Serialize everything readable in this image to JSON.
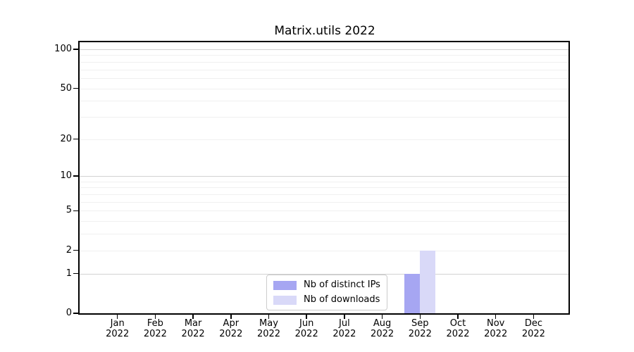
{
  "chart_data": {
    "type": "bar",
    "title": "Matrix.utils 2022",
    "categories": [
      "Jan",
      "Feb",
      "Mar",
      "Apr",
      "May",
      "Jun",
      "Jul",
      "Aug",
      "Sep",
      "Oct",
      "Nov",
      "Dec"
    ],
    "year": "2022",
    "series": [
      {
        "name": "Nb of distinct IPs",
        "color": "#a6a6f2",
        "values": [
          0,
          0,
          0,
          0,
          0,
          0,
          0,
          0,
          1,
          0,
          0,
          0
        ]
      },
      {
        "name": "Nb of downloads",
        "color": "#d9d9f8",
        "values": [
          0,
          0,
          0,
          0,
          0,
          0,
          0,
          0,
          2,
          0,
          0,
          0
        ]
      }
    ],
    "y_ticks": [
      0,
      1,
      2,
      5,
      10,
      20,
      50,
      100
    ],
    "y_scale": "log(1+y)",
    "ylim": [
      0,
      110
    ],
    "grid": "both",
    "minor_gridline_values": [
      2,
      3,
      4,
      5,
      6,
      7,
      8,
      9,
      20,
      30,
      40,
      50,
      60,
      70,
      80,
      90
    ],
    "major_gridline_values": [
      1,
      10,
      100
    ],
    "legend_position": "lower center",
    "colors": {
      "axis": "#000000",
      "major_grid": "#d2d2d2",
      "minor_grid": "#f0f0f0",
      "text": "#000000"
    }
  }
}
